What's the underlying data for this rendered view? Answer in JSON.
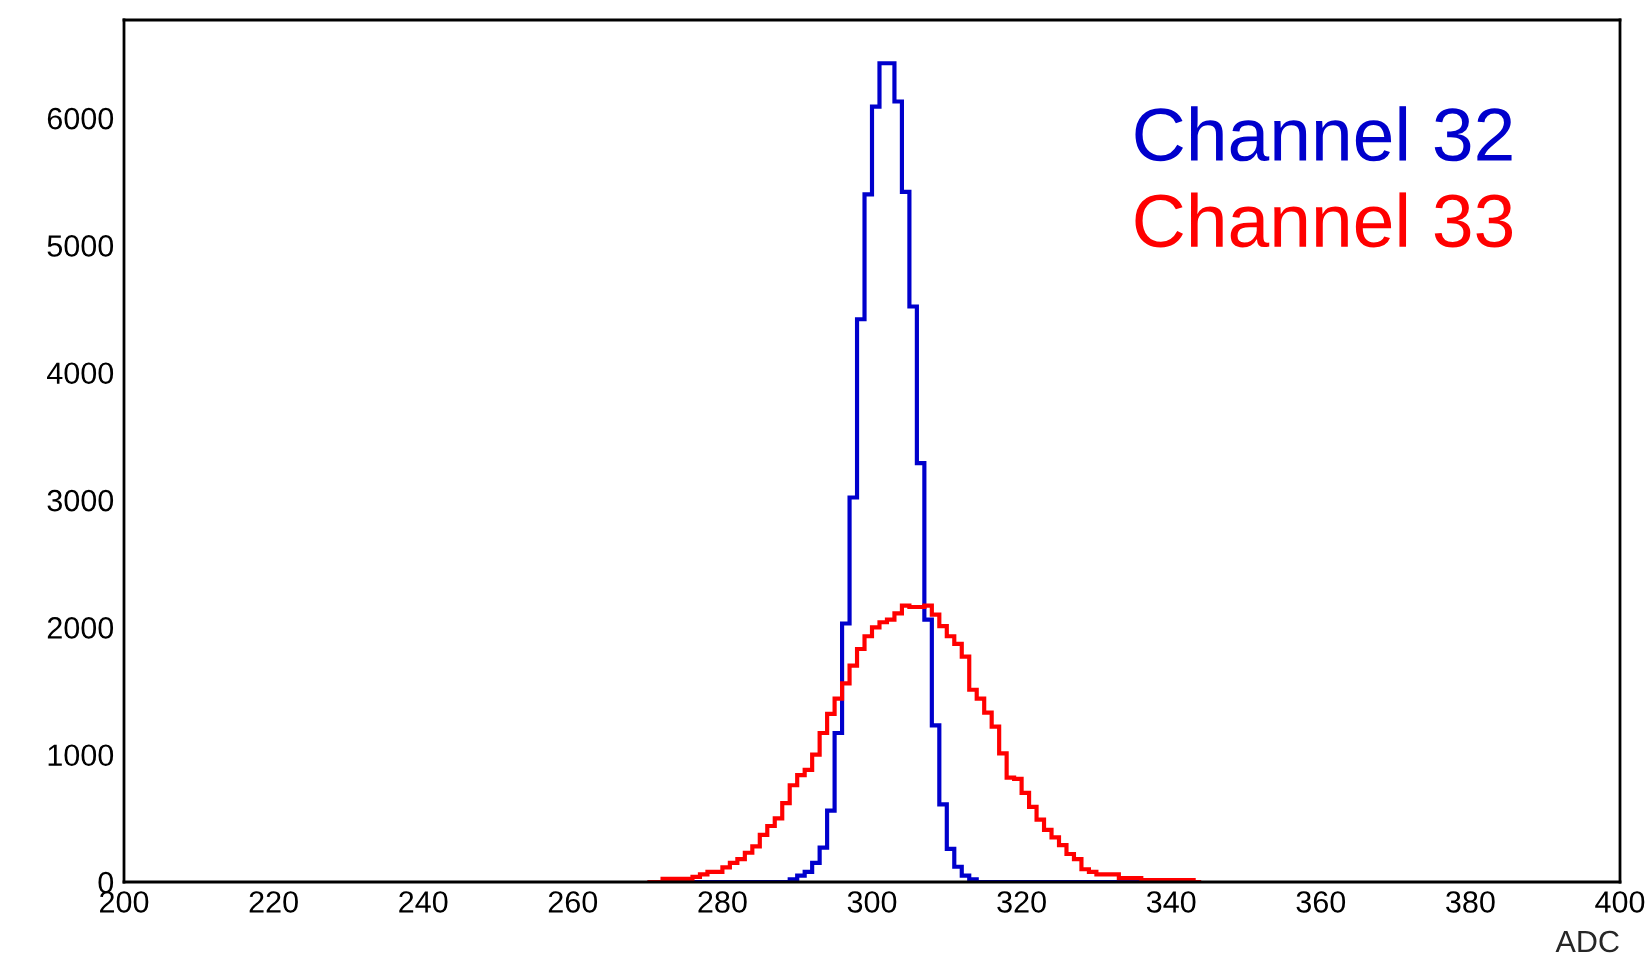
{
  "chart_data": {
    "type": "histogram",
    "xlabel": "ADC",
    "bins": [
      270,
      271,
      272,
      273,
      274,
      275,
      276,
      277,
      278,
      279,
      280,
      281,
      282,
      283,
      284,
      285,
      286,
      287,
      288,
      289,
      290,
      291,
      292,
      293,
      294,
      295,
      296,
      297,
      298,
      299,
      300,
      301,
      302,
      303,
      304,
      305,
      306,
      307,
      308,
      309,
      310,
      311,
      312,
      313,
      314,
      315,
      316,
      317,
      318,
      319,
      320,
      321,
      322,
      323,
      324,
      325,
      326,
      327,
      328,
      329,
      330,
      331,
      332,
      333,
      334,
      335,
      336,
      337,
      338,
      339,
      340,
      341,
      342,
      343,
      344
    ],
    "series": [
      {
        "name": "Channel 32",
        "color": "#0000cc",
        "values": [
          0,
          0,
          0,
          0,
          0,
          0,
          0,
          0,
          0,
          0,
          0,
          0,
          0,
          0,
          0,
          0,
          0,
          0,
          0,
          20,
          50,
          80,
          150,
          270,
          560,
          1170,
          2030,
          3020,
          4420,
          5400,
          6090,
          6430,
          6430,
          6130,
          5420,
          4520,
          3290,
          2060,
          1230,
          610,
          260,
          120,
          50,
          20,
          0,
          0,
          0,
          0,
          0,
          0,
          0,
          0,
          0,
          0,
          0,
          0,
          0,
          0,
          0,
          0,
          0,
          0,
          0,
          0,
          0,
          0,
          0,
          0,
          0,
          0,
          0,
          0,
          0,
          0
        ]
      },
      {
        "name": "Channel 33",
        "color": "#ff0000",
        "values": [
          0,
          0,
          25,
          25,
          25,
          25,
          40,
          60,
          80,
          80,
          115,
          150,
          180,
          230,
          280,
          370,
          440,
          500,
          620,
          760,
          840,
          880,
          1000,
          1170,
          1320,
          1440,
          1560,
          1700,
          1830,
          1930,
          2000,
          2040,
          2060,
          2110,
          2170,
          2160,
          2160,
          2170,
          2100,
          2010,
          1930,
          1870,
          1770,
          1510,
          1440,
          1330,
          1220,
          1010,
          820,
          810,
          700,
          590,
          490,
          410,
          350,
          290,
          220,
          180,
          100,
          80,
          60,
          60,
          60,
          30,
          30,
          30,
          15,
          15,
          15,
          15,
          15,
          15,
          15,
          0
        ]
      }
    ],
    "xlim": [
      200,
      400
    ],
    "xticks": [
      200,
      220,
      240,
      260,
      280,
      300,
      320,
      340,
      360,
      380,
      400
    ],
    "ylim": [
      0,
      6770
    ],
    "yticks": [
      0,
      1000,
      2000,
      3000,
      4000,
      5000,
      6000
    ],
    "grid": false,
    "legend": "top right"
  }
}
